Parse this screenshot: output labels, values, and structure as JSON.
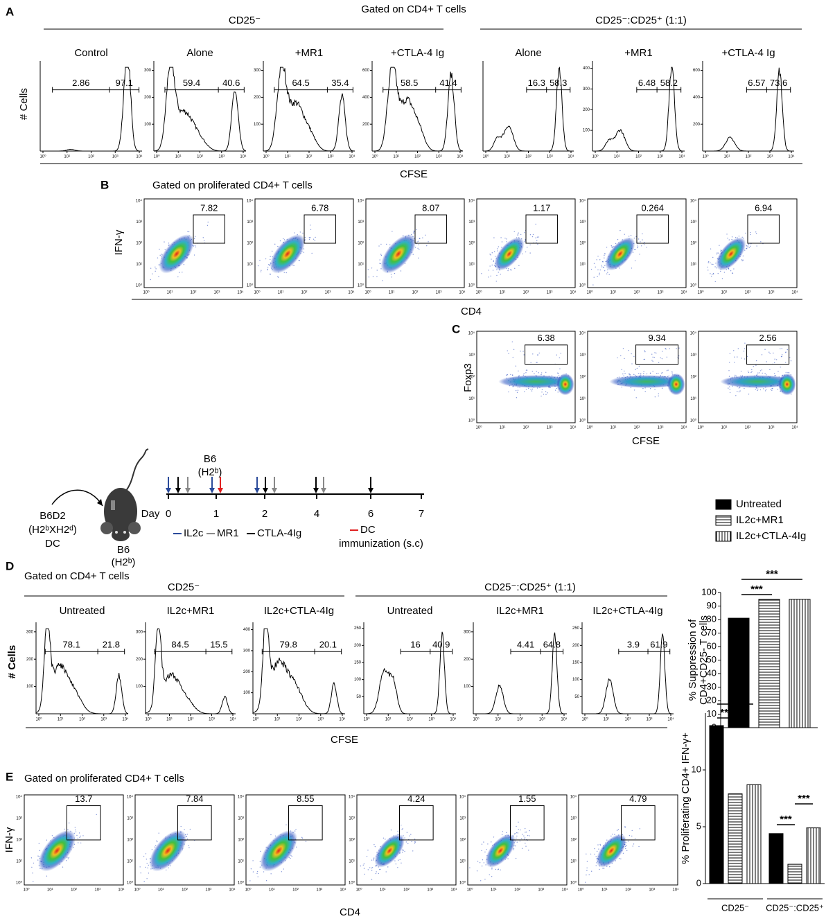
{
  "panel_a": {
    "letter": "A",
    "gate": "Gated on CD4+ T cells",
    "groups": [
      "CD25⁻",
      "CD25⁻:CD25⁺ (1:1)"
    ],
    "ylabel": "# Cells",
    "xlabel": "CFSE",
    "plots": [
      {
        "title": "Control",
        "yticks": [],
        "gates": [
          "2.86",
          "97.1"
        ]
      },
      {
        "title": "Alone",
        "yticks": [
          "100",
          "200",
          "300"
        ],
        "gates": [
          "59.4",
          "40.6"
        ]
      },
      {
        "title": "+MR1",
        "yticks": [
          "100",
          "200",
          "300"
        ],
        "gates": [
          "64.5",
          "35.4"
        ]
      },
      {
        "title": "+CTLA-4 Ig",
        "yticks": [
          "200",
          "400",
          "600"
        ],
        "gates": [
          "58.5",
          "41.4"
        ]
      },
      {
        "title": "Alone",
        "yticks": [],
        "gates": [
          "16.3",
          "58.3"
        ]
      },
      {
        "title": "+MR1",
        "yticks": [
          "100",
          "200",
          "300",
          "400"
        ],
        "gates": [
          "6.48",
          "58.2"
        ]
      },
      {
        "title": "+CTLA-4 Ig",
        "yticks": [
          "200",
          "400",
          "600"
        ],
        "gates": [
          "6.57",
          "73.6"
        ]
      }
    ]
  },
  "log_ticks": [
    "10⁰",
    "10¹",
    "10²",
    "10³",
    "10⁴"
  ],
  "panel_b": {
    "letter": "B",
    "gate": "Gated on proliferated CD4+ T cells",
    "ylabel": "IFN-γ",
    "xlabel": "CD4",
    "gates": [
      "7.82",
      "6.78",
      "8.07",
      "1.17",
      "0.264",
      "6.94"
    ]
  },
  "panel_c": {
    "letter": "C",
    "ylabel": "Foxp3",
    "xlabel": "CFSE",
    "gates": [
      "6.38",
      "9.34",
      "2.56"
    ]
  },
  "schematic": {
    "donor": [
      "B6D2",
      "(H2ᵇXH2ᵈ)",
      "DC"
    ],
    "recipient": [
      "B6",
      "(H2ᵇ)"
    ],
    "immunization_strain": [
      "B6",
      "(H2ᵇ)"
    ],
    "day_label": "Day",
    "days": [
      "0",
      "1",
      "2",
      "4",
      "6",
      "7"
    ],
    "legend": [
      "IL2c",
      "MR1",
      "CTLA-4Ig",
      "DC",
      "immunization (s.c)"
    ]
  },
  "panel_d": {
    "letter": "D",
    "gate": "Gated on CD4+ T cells",
    "groups": [
      "CD25⁻",
      "CD25⁻:CD25⁺ (1:1)"
    ],
    "ylabel": "# Cells",
    "xlabel": "CFSE",
    "plots": [
      {
        "title": "Untreated",
        "yticks": [
          "100",
          "200",
          "300"
        ],
        "gates": [
          "78.1",
          "21.8"
        ]
      },
      {
        "title": "IL2c+MR1",
        "yticks": [
          "100",
          "200",
          "300"
        ],
        "gates": [
          "84.5",
          "15.5"
        ]
      },
      {
        "title": "IL2c+CTLA-4Ig",
        "yticks": [
          "100",
          "200",
          "300",
          "400"
        ],
        "gates": [
          "79.8",
          "20.1"
        ]
      },
      {
        "title": "Untreated",
        "yticks": [
          "50",
          "100",
          "150",
          "200",
          "250"
        ],
        "gates": [
          "16",
          "40.9"
        ]
      },
      {
        "title": "IL2c+MR1",
        "yticks": [
          "100",
          "200",
          "300"
        ],
        "gates": [
          "4.41",
          "64.8"
        ]
      },
      {
        "title": "IL2c+CTLA-4Ig",
        "yticks": [
          "50",
          "100",
          "150",
          "200",
          "250"
        ],
        "gates": [
          "3.9",
          "61.9"
        ]
      }
    ]
  },
  "panel_e": {
    "letter": "E",
    "gate": "Gated on proliferated CD4+ T cells",
    "ylabel": "IFN-γ",
    "xlabel": "CD4",
    "gates": [
      "13.7",
      "7.84",
      "8.55",
      "4.24",
      "1.55",
      "4.79"
    ]
  },
  "chart_data": [
    {
      "type": "bar",
      "ylabel": [
        "% Suppression of",
        "CD4+CD25- T cells"
      ],
      "categories": [
        null
      ],
      "series": [
        {
          "name": "Untreated",
          "color": "#000000",
          "pattern": "solid",
          "values": [
            81
          ]
        },
        {
          "name": "IL2c+MR1",
          "color": "#000000",
          "pattern": "horizontal",
          "values": [
            95
          ]
        },
        {
          "name": "IL2c+CTLA-4Ig",
          "color": "#000000",
          "pattern": "vertical",
          "values": [
            95
          ]
        }
      ],
      "ylim": [
        0,
        100
      ],
      "yticks": [
        0,
        10,
        20,
        30,
        40,
        50,
        60,
        70,
        80,
        90,
        100
      ],
      "annotations": [
        "***",
        "***"
      ]
    },
    {
      "type": "bar",
      "ylabel": [
        "% Proliferating CD4+ IFN-γ+"
      ],
      "categories": [
        "CD25⁻",
        "CD25⁻:CD25⁺"
      ],
      "series": [
        {
          "color": "#000000",
          "pattern": "solid",
          "values": [
            13.9,
            4.4
          ]
        },
        {
          "color": "#000000",
          "pattern": "horizontal",
          "values": [
            7.9,
            1.7
          ]
        },
        {
          "color": "#000000",
          "pattern": "vertical",
          "values": [
            8.7,
            4.9
          ]
        }
      ],
      "ylim": [
        0,
        15
      ],
      "yticks": [
        0,
        5,
        10
      ],
      "annotations": [
        "***",
        "***",
        "***",
        "***"
      ]
    }
  ]
}
